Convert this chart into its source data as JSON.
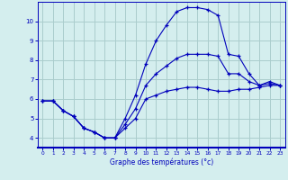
{
  "xlabel": "Graphe des températures (°c)",
  "bg_color": "#d4eeee",
  "grid_color": "#aacccc",
  "line_color": "#0000bb",
  "xlim": [
    -0.5,
    23.5
  ],
  "ylim": [
    3.5,
    11.0
  ],
  "xticks": [
    0,
    1,
    2,
    3,
    4,
    5,
    6,
    7,
    8,
    9,
    10,
    11,
    12,
    13,
    14,
    15,
    16,
    17,
    18,
    19,
    20,
    21,
    22,
    23
  ],
  "yticks": [
    4,
    5,
    6,
    7,
    8,
    9,
    10
  ],
  "series": {
    "line1_min": {
      "x": [
        0,
        1,
        2,
        3,
        4,
        5,
        6,
        7,
        8,
        9,
        10,
        11,
        12,
        13,
        14,
        15,
        16,
        17,
        18,
        19,
        20,
        21,
        22,
        23
      ],
      "y": [
        5.9,
        5.9,
        5.4,
        5.1,
        4.5,
        4.3,
        4.0,
        4.0,
        4.5,
        5.0,
        6.0,
        6.2,
        6.4,
        6.5,
        6.6,
        6.6,
        6.5,
        6.4,
        6.4,
        6.5,
        6.5,
        6.6,
        6.7,
        6.7
      ]
    },
    "line2_max": {
      "x": [
        0,
        1,
        2,
        3,
        4,
        5,
        6,
        7,
        8,
        9,
        10,
        11,
        12,
        13,
        14,
        15,
        16,
        17,
        18,
        19,
        20,
        21,
        22,
        23
      ],
      "y": [
        5.9,
        5.9,
        5.4,
        5.1,
        4.5,
        4.3,
        4.0,
        4.0,
        5.0,
        6.2,
        7.8,
        9.0,
        9.8,
        10.5,
        10.7,
        10.7,
        10.6,
        10.3,
        8.3,
        8.2,
        7.3,
        6.7,
        6.9,
        6.7
      ]
    },
    "line3_avg": {
      "x": [
        0,
        1,
        2,
        3,
        4,
        5,
        6,
        7,
        8,
        9,
        10,
        11,
        12,
        13,
        14,
        15,
        16,
        17,
        18,
        19,
        20,
        21,
        22,
        23
      ],
      "y": [
        5.9,
        5.9,
        5.4,
        5.1,
        4.5,
        4.3,
        4.0,
        4.0,
        4.7,
        5.5,
        6.7,
        7.3,
        7.7,
        8.1,
        8.3,
        8.3,
        8.3,
        8.2,
        7.3,
        7.3,
        6.9,
        6.7,
        6.8,
        6.7
      ]
    }
  }
}
